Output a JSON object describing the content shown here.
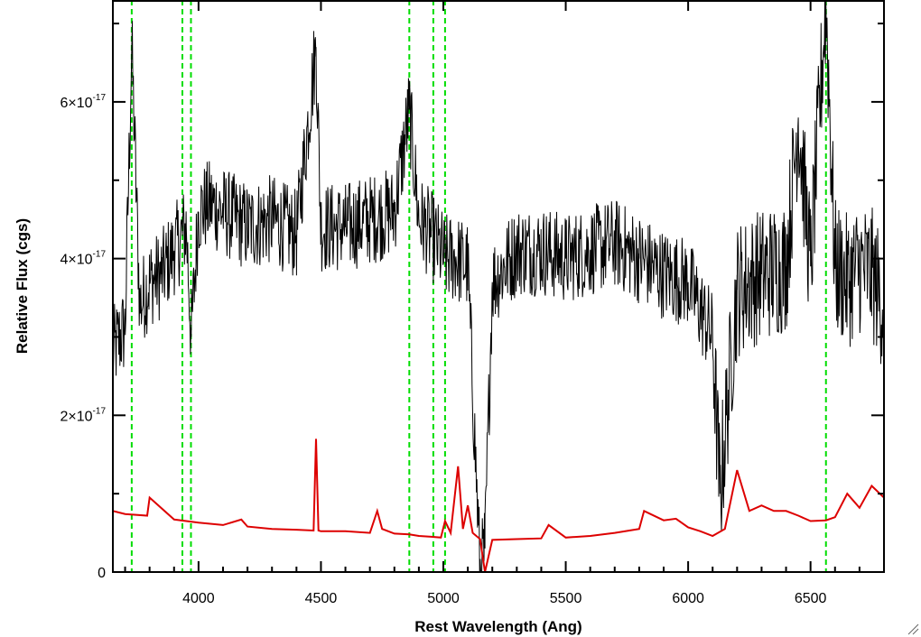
{
  "chart_data": {
    "type": "line",
    "title": "",
    "xlabel": "Rest Wavelength (Ang)",
    "ylabel": "Relative Flux (cgs)",
    "xlim": [
      3650,
      6800
    ],
    "ylim": [
      0,
      7.3e-17
    ],
    "xticks": [
      {
        "value": 4000,
        "label": "4000"
      },
      {
        "value": 4500,
        "label": "4500"
      },
      {
        "value": 5000,
        "label": "5000"
      },
      {
        "value": 5500,
        "label": "5500"
      },
      {
        "value": 6000,
        "label": "6000"
      },
      {
        "value": 6500,
        "label": "6500"
      }
    ],
    "yticks": [
      {
        "value": 0,
        "mantissa": "0",
        "exponent": ""
      },
      {
        "value": 2e-17,
        "mantissa": "2×10",
        "exponent": "-17"
      },
      {
        "value": 4e-17,
        "mantissa": "4×10",
        "exponent": "-17"
      },
      {
        "value": 6e-17,
        "mantissa": "6×10",
        "exponent": "-17"
      }
    ],
    "grid": false,
    "reference_lines": {
      "color": "#00dd00",
      "style": "dashed",
      "x": [
        3727,
        3934,
        3969,
        4861,
        4959,
        5007,
        6563
      ]
    },
    "series": [
      {
        "color": "#000000",
        "style": "noisy-line",
        "x": [
          3650,
          3680,
          3700,
          3727,
          3760,
          3800,
          3850,
          3900,
          3950,
          3970,
          4000,
          4050,
          4100,
          4150,
          4200,
          4300,
          4400,
          4480,
          4500,
          4600,
          4700,
          4800,
          4861,
          4900,
          4950,
          5007,
          5050,
          5100,
          5150,
          5170,
          5200,
          5250,
          5300,
          5400,
          5500,
          5600,
          5700,
          5800,
          5900,
          6000,
          6100,
          6130,
          6200,
          6300,
          6400,
          6450,
          6500,
          6563,
          6600,
          6650,
          6700,
          6750,
          6800
        ],
        "y": [
          2.8e-17,
          3e-17,
          3.1e-17,
          6.7e-17,
          3.4e-17,
          3.7e-17,
          3.8e-17,
          4.1e-17,
          4.4e-17,
          3e-17,
          4.6e-17,
          4.7e-17,
          4.6e-17,
          4.5e-17,
          4.4e-17,
          4.5e-17,
          4.3e-17,
          6.7e-17,
          4.4e-17,
          4.4e-17,
          4.5e-17,
          4.6e-17,
          5.9e-17,
          4.5e-17,
          4.3e-17,
          4e-17,
          4e-17,
          3.9e-17,
          0.0,
          3e-18,
          3.7e-17,
          3.9e-17,
          4.1e-17,
          4.1e-17,
          4e-17,
          4.1e-17,
          4.2e-17,
          4e-17,
          3.8e-17,
          3.7e-17,
          3e-17,
          1e-17,
          3.6e-17,
          3.8e-17,
          3.9e-17,
          5.8e-17,
          3.9e-17,
          7.3e-17,
          3.9e-17,
          3.7e-17,
          3.9e-17,
          3.8e-17,
          3.4e-17
        ]
      },
      {
        "color": "#dd0000",
        "style": "line",
        "x": [
          3650,
          3700,
          3790,
          3800,
          3900,
          4000,
          4100,
          4175,
          4200,
          4300,
          4400,
          4470,
          4480,
          4490,
          4500,
          4600,
          4700,
          4730,
          4750,
          4800,
          4861,
          4900,
          4950,
          4990,
          5007,
          5030,
          5060,
          5080,
          5100,
          5120,
          5150,
          5170,
          5200,
          5300,
          5400,
          5430,
          5500,
          5600,
          5700,
          5800,
          5820,
          5900,
          5950,
          6000,
          6050,
          6100,
          6150,
          6200,
          6250,
          6300,
          6350,
          6400,
          6450,
          6500,
          6563,
          6600,
          6650,
          6700,
          6750,
          6800
        ],
        "y": [
          7.8e-18,
          7.4e-18,
          7.2e-18,
          9.5e-18,
          6.7e-18,
          6.3e-18,
          6e-18,
          6.7e-18,
          5.8e-18,
          5.5e-18,
          5.4e-18,
          5.3e-18,
          1.7e-17,
          5.3e-18,
          5.2e-18,
          5.2e-18,
          5e-18,
          7.8e-18,
          5.5e-18,
          4.9e-18,
          4.8e-18,
          4.6e-18,
          4.5e-18,
          4.4e-18,
          6.5e-18,
          5e-18,
          1.35e-17,
          5.5e-18,
          8.5e-18,
          5e-18,
          4.2e-18,
          0.0,
          4.1e-18,
          4.2e-18,
          4.3e-18,
          6e-18,
          4.4e-18,
          4.6e-18,
          5e-18,
          5.5e-18,
          7.8e-18,
          6.6e-18,
          6.8e-18,
          5.7e-18,
          5.2e-18,
          4.6e-18,
          5.5e-18,
          1.3e-17,
          7.8e-18,
          8.5e-18,
          7.8e-18,
          7.8e-18,
          7.2e-18,
          6.5e-18,
          6.6e-18,
          7e-18,
          1e-17,
          8.2e-18,
          1.1e-17,
          9.5e-18
        ]
      }
    ]
  }
}
